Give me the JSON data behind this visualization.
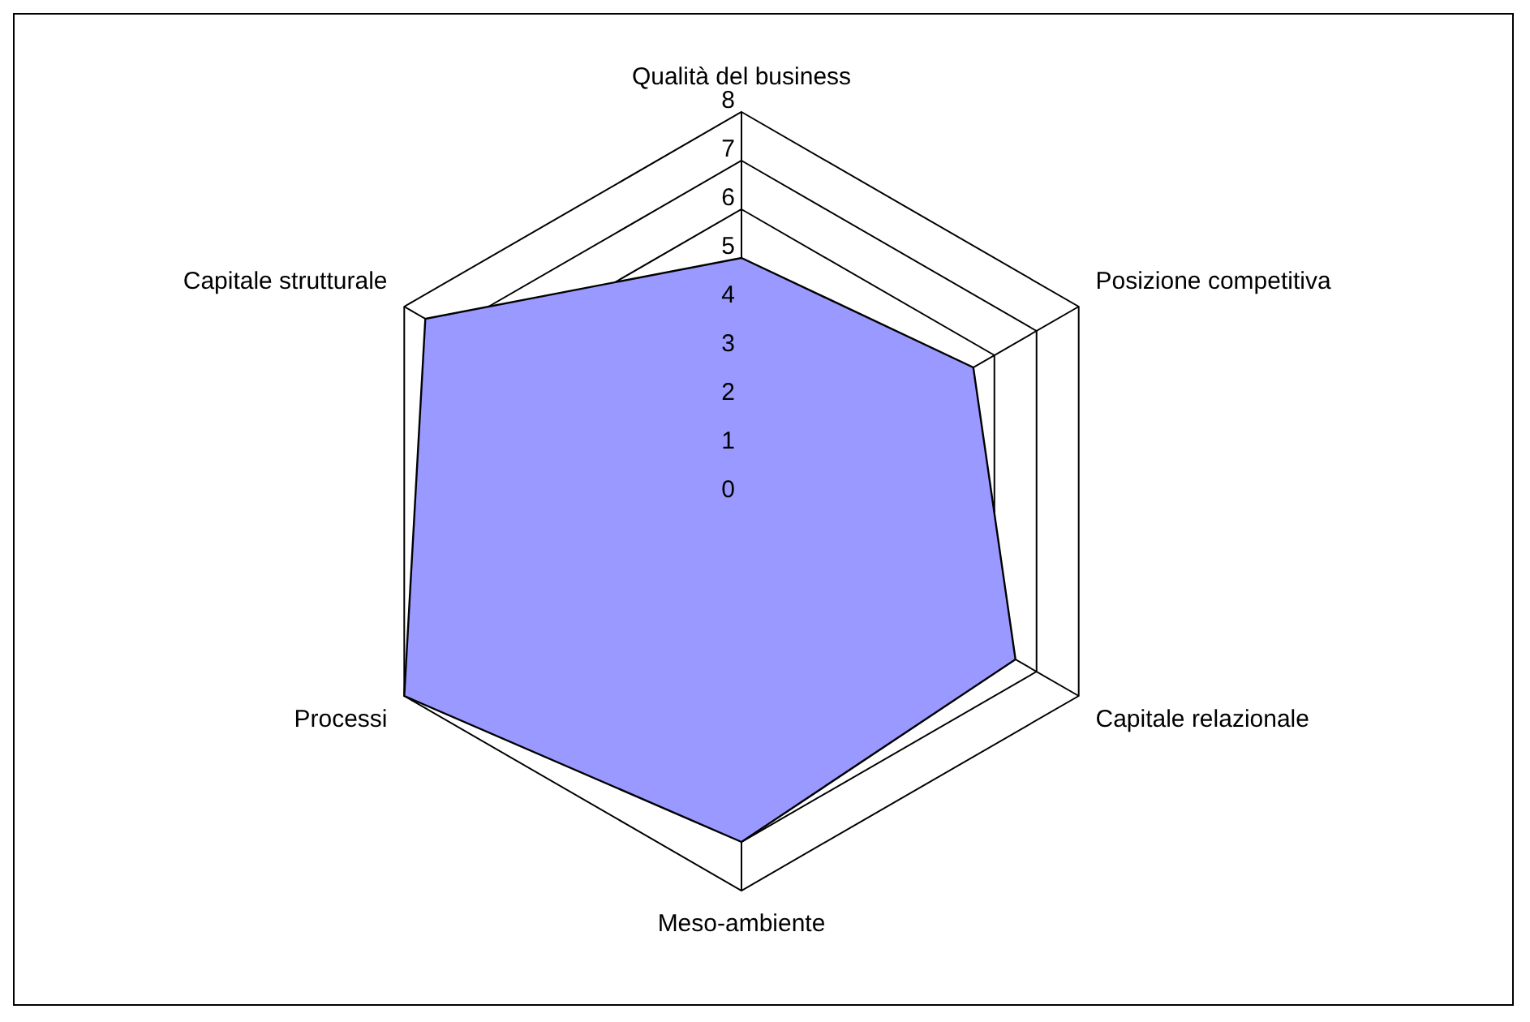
{
  "chart_data": {
    "type": "radar",
    "categories": [
      "Qualità del business",
      "Posizione competitiva",
      "Capitale relazionale",
      "Meso-ambiente",
      "Processi",
      "Capitale strutturale"
    ],
    "series": [
      {
        "color": "#9999ff",
        "values": [
          5,
          5.5,
          6.5,
          7,
          8,
          7.5
        ]
      }
    ],
    "ylim": [
      0,
      8
    ],
    "yticks": [
      0,
      1,
      2,
      3,
      4,
      5,
      6,
      7,
      8
    ],
    "grid": true,
    "legend": false
  }
}
